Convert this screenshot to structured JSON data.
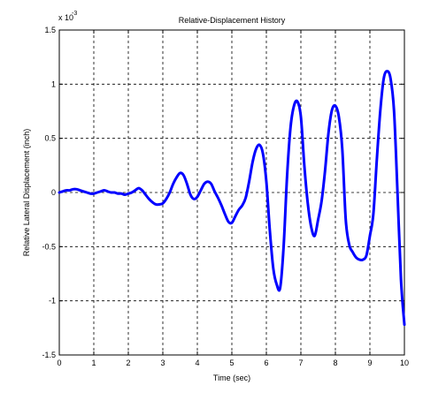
{
  "chart_data": {
    "type": "line",
    "title": "Relative-Displacement History",
    "xlabel": "Time (sec)",
    "ylabel": "Relative Lateral Displacement (inch)",
    "y_exponent_label": "x 10",
    "y_exponent_power": "-3",
    "xlim": [
      0,
      10
    ],
    "ylim": [
      -1.5,
      1.5
    ],
    "y_scale_factor": 0.001,
    "grid": true,
    "grid_style": "dashed",
    "x_ticks": [
      0,
      1,
      2,
      3,
      4,
      5,
      6,
      7,
      8,
      9,
      10
    ],
    "x_tick_labels": [
      "0",
      "1",
      "2",
      "3",
      "4",
      "5",
      "6",
      "7",
      "8",
      "9",
      "10"
    ],
    "y_ticks": [
      -1.5,
      -1,
      -0.5,
      0,
      0.5,
      1,
      1.5
    ],
    "y_tick_labels": [
      "-1.5",
      "-1",
      "-0.5",
      "0",
      "0.5",
      "1",
      "1.5"
    ],
    "series": [
      {
        "color": "#0000ff",
        "x": [
          0,
          0.1,
          0.2,
          0.3,
          0.4,
          0.5,
          0.6,
          0.7,
          0.8,
          0.9,
          1.0,
          1.1,
          1.2,
          1.3,
          1.4,
          1.5,
          1.6,
          1.7,
          1.8,
          1.9,
          2.0,
          2.1,
          2.2,
          2.3,
          2.4,
          2.5,
          2.6,
          2.7,
          2.8,
          2.9,
          3.0,
          3.1,
          3.2,
          3.3,
          3.4,
          3.5,
          3.6,
          3.7,
          3.8,
          3.9,
          4.0,
          4.1,
          4.2,
          4.3,
          4.4,
          4.5,
          4.6,
          4.7,
          4.8,
          4.9,
          5.0,
          5.1,
          5.2,
          5.3,
          5.4,
          5.5,
          5.6,
          5.7,
          5.8,
          5.9,
          6.0,
          6.1,
          6.2,
          6.3,
          6.4,
          6.5,
          6.6,
          6.7,
          6.8,
          6.9,
          7.0,
          7.1,
          7.2,
          7.3,
          7.4,
          7.5,
          7.6,
          7.7,
          7.8,
          7.9,
          8.0,
          8.1,
          8.2,
          8.3,
          8.4,
          8.5,
          8.6,
          8.7,
          8.8,
          8.9,
          9.0,
          9.1,
          9.2,
          9.3,
          9.4,
          9.5,
          9.6,
          9.7,
          9.8,
          9.9,
          10.0
        ],
        "y": [
          0,
          0.01,
          0.02,
          0.02,
          0.03,
          0.03,
          0.02,
          0.01,
          0.0,
          -0.01,
          -0.01,
          0.0,
          0.01,
          0.02,
          0.01,
          0.0,
          0.0,
          -0.01,
          -0.01,
          -0.02,
          -0.01,
          0.0,
          0.02,
          0.04,
          0.02,
          -0.02,
          -0.06,
          -0.09,
          -0.11,
          -0.11,
          -0.1,
          -0.06,
          0.0,
          0.08,
          0.14,
          0.18,
          0.16,
          0.08,
          -0.02,
          -0.06,
          -0.04,
          0.02,
          0.08,
          0.1,
          0.08,
          0.01,
          -0.05,
          -0.12,
          -0.2,
          -0.27,
          -0.28,
          -0.22,
          -0.16,
          -0.12,
          -0.05,
          0.1,
          0.28,
          0.4,
          0.44,
          0.36,
          0.1,
          -0.35,
          -0.7,
          -0.85,
          -0.88,
          -0.5,
          0.15,
          0.6,
          0.8,
          0.84,
          0.7,
          0.25,
          -0.1,
          -0.32,
          -0.4,
          -0.25,
          -0.08,
          0.2,
          0.55,
          0.76,
          0.8,
          0.7,
          0.4,
          -0.25,
          -0.48,
          -0.55,
          -0.6,
          -0.62,
          -0.62,
          -0.58,
          -0.4,
          -0.2,
          0.3,
          0.75,
          1.05,
          1.12,
          1.05,
          0.75,
          0.0,
          -0.8,
          -1.22
        ]
      }
    ]
  }
}
